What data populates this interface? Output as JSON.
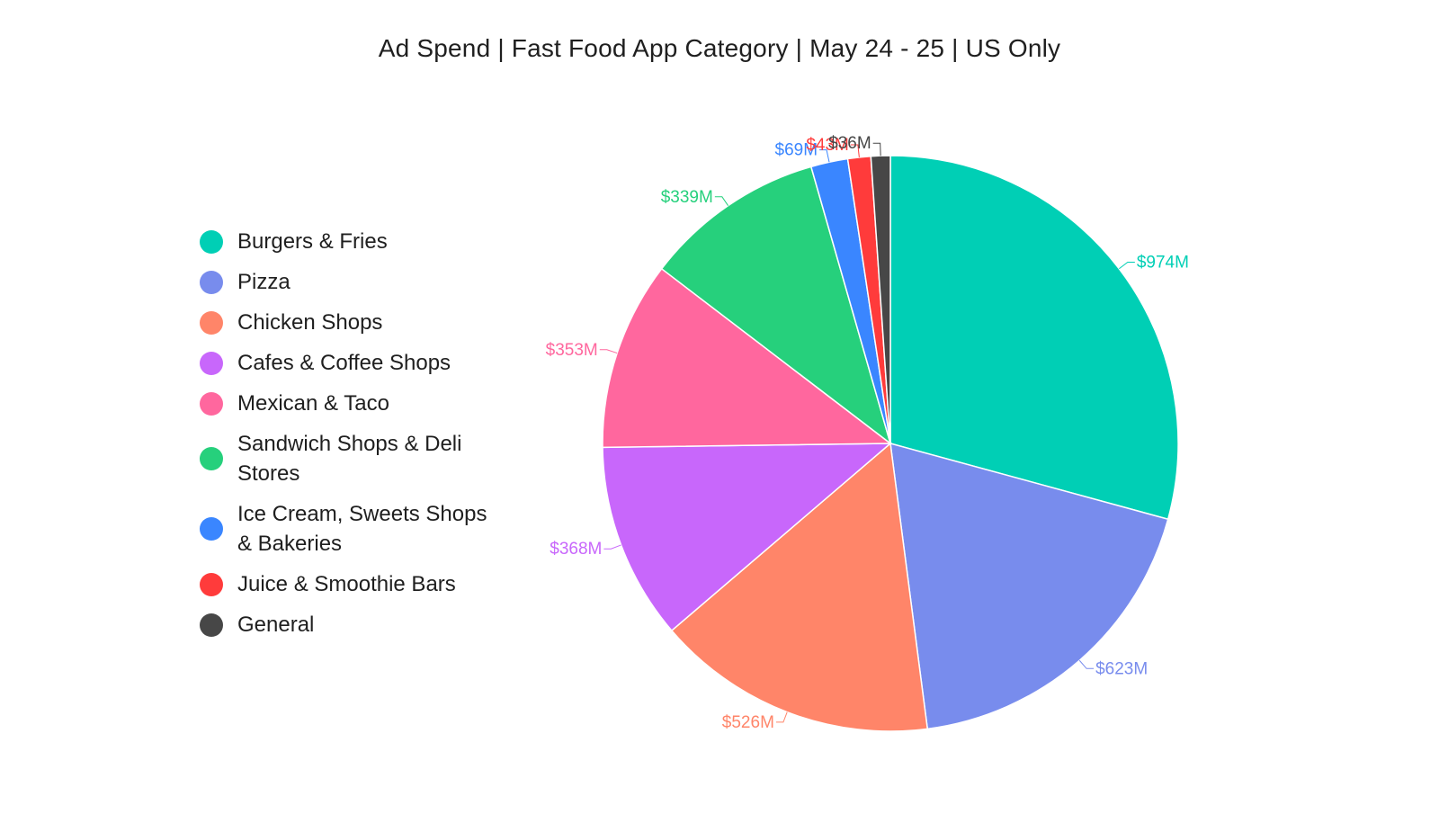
{
  "title": "Ad Spend | Fast Food App Category | May 24 - 25 | US Only",
  "chart_data": {
    "type": "pie",
    "title": "Ad Spend | Fast Food App Category | May 24 - 25 | US Only",
    "legend_position": "left",
    "start": "12 o'clock",
    "direction": "clockwise",
    "slices": [
      {
        "name": "Burgers & Fries",
        "value": 974,
        "label": "$974M",
        "color": "#00cfb5"
      },
      {
        "name": "Pizza",
        "value": 623,
        "label": "$623M",
        "color": "#788ced"
      },
      {
        "name": "Chicken Shops",
        "value": 526,
        "label": "$526M",
        "color": "#ff8569"
      },
      {
        "name": "Cafes & Coffee Shops",
        "value": 368,
        "label": "$368M",
        "color": "#c867fb"
      },
      {
        "name": "Mexican & Taco",
        "value": 353,
        "label": "$353M",
        "color": "#ff679e"
      },
      {
        "name": "Sandwich Shops & Deli Stores",
        "value": 339,
        "label": "$339M",
        "color": "#26d07c"
      },
      {
        "name": "Ice Cream, Sweets Shops & Bakeries",
        "value": 69,
        "label": "$69M",
        "color": "#3a86ff"
      },
      {
        "name": "Juice & Smoothie Bars",
        "value": 43,
        "label": "$43M",
        "color": "#ff3b3b"
      },
      {
        "name": "General",
        "value": 36,
        "label": "$36M",
        "color": "#474747"
      }
    ]
  }
}
